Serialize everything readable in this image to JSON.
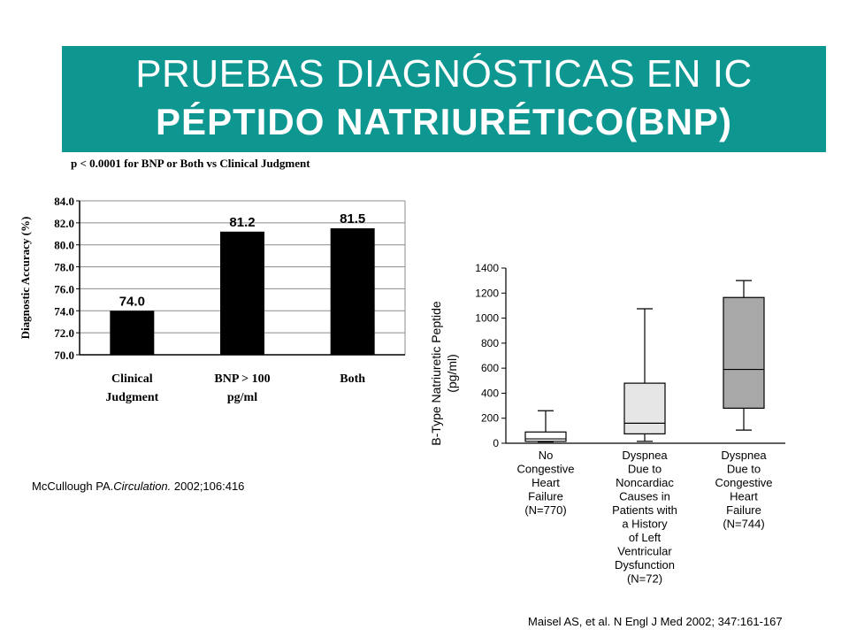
{
  "banner": {
    "line1": "PRUEBAS DIAGNÓSTICAS EN IC",
    "line2": "PÉPTIDO NATRIURÉTICO(BNP)"
  },
  "colors": {
    "banner_bg": "#0e9690",
    "bar_fill": "#000000",
    "box_light": "#e6e6e6",
    "box_dark": "#a8a8a8"
  },
  "chart_data": [
    {
      "type": "bar",
      "note": "p < 0.0001 for BNP or Both vs Clinical Judgment",
      "ylabel": "Diagnostic Accuracy (%)",
      "categories": [
        [
          "Clinical",
          "Judgment"
        ],
        [
          "BNP > 100",
          "pg/ml"
        ],
        [
          "Both"
        ]
      ],
      "values": [
        74.0,
        81.2,
        81.5
      ],
      "value_labels": [
        "74.0",
        "81.2",
        "81.5"
      ],
      "ylim": [
        70.0,
        84.0
      ],
      "yticks": [
        "70.0",
        "72.0",
        "74.0",
        "76.0",
        "78.0",
        "80.0",
        "82.0",
        "84.0"
      ],
      "grid": true,
      "citation_pre": "McCullough PA.",
      "citation_journal": "Circulation.",
      "citation_post": " 2002;106:416"
    },
    {
      "type": "box",
      "ylabel": [
        "B-Type Natriuretic Peptide",
        "(pg/ml)"
      ],
      "ylim": [
        0,
        1400
      ],
      "yticks": [
        "0",
        "200",
        "400",
        "600",
        "800",
        "1000",
        "1200",
        "1400"
      ],
      "categories": [
        [
          "No",
          "Congestive",
          "Heart",
          "Failure",
          "(N=770)"
        ],
        [
          "Dyspnea",
          "Due to",
          "Noncardiac",
          "Causes in",
          "Patients with",
          "a History",
          "of Left",
          "Ventricular",
          "Dysfunction",
          "(N=72)"
        ],
        [
          "Dyspnea",
          "Due to",
          "Congestive",
          "Heart",
          "Failure",
          "(N=744)"
        ]
      ],
      "boxes": [
        {
          "min": 10,
          "q1": 15,
          "median": 35,
          "q3": 90,
          "max": 260,
          "shade": "#ffffff"
        },
        {
          "min": 15,
          "q1": 75,
          "median": 160,
          "q3": 480,
          "max": 1075,
          "shade": "#e6e6e6"
        },
        {
          "min": 105,
          "q1": 280,
          "median": 590,
          "q3": 1165,
          "max": 1300,
          "shade": "#a8a8a8"
        }
      ],
      "citation": "Maisel AS, et al. N Engl J Med 2002; 347:161-167"
    }
  ]
}
